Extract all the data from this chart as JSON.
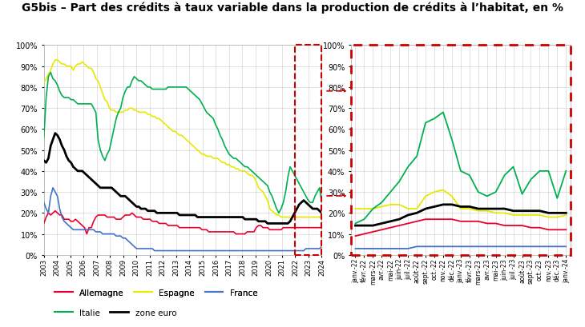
{
  "title": "G5bis – Part des crédits à taux variable dans la production de crédits à l’habitat, en %",
  "title_fontsize": 10,
  "colors": {
    "Allemagne": "#e8002a",
    "Espagne": "#e8e800",
    "France": "#4472c4",
    "Italie": "#00b050",
    "zone euro": "#000000"
  },
  "left_xlabels": [
    "2003",
    "2004",
    "2005",
    "2006",
    "2007",
    "2008",
    "2009",
    "2010",
    "2011",
    "2012",
    "2013",
    "2014",
    "2015",
    "2016",
    "2017",
    "2018",
    "2019",
    "2020",
    "2021",
    "2022",
    "2023",
    "2024"
  ],
  "right_xlabels": [
    "janv.-22",
    "févr.-22",
    "mars-22",
    "avr.-22",
    "mai-22",
    "juin-22",
    "juil.-22",
    "août-22",
    "sept.-22",
    "oct.-22",
    "nov.-22",
    "déc.-22",
    "janv.-23",
    "févr.-23",
    "mars-23",
    "avr.-23",
    "mai-23",
    "juin-23",
    "juil.-23",
    "août-23",
    "sept.-23",
    "oct.-23",
    "nov.-23",
    "déc.-23",
    "janv.-24"
  ],
  "left_data": {
    "Allemagne": [
      15,
      18,
      20,
      19,
      20,
      21,
      20,
      19,
      19,
      17,
      17,
      17,
      16,
      16,
      17,
      16,
      15,
      14,
      13,
      10,
      13,
      13,
      16,
      18,
      19,
      19,
      19,
      19,
      18,
      18,
      18,
      18,
      17,
      17,
      17,
      18,
      19,
      19,
      19,
      20,
      19,
      18,
      18,
      18,
      17,
      17,
      17,
      17,
      16,
      16,
      16,
      15,
      15,
      15,
      15,
      14,
      14,
      14,
      14,
      14,
      13,
      13,
      13,
      13,
      13,
      13,
      13,
      13,
      13,
      13,
      12,
      12,
      12,
      11,
      11,
      11,
      11,
      11,
      11,
      11,
      11,
      11,
      11,
      11,
      11,
      10,
      10,
      10,
      10,
      10,
      11,
      11,
      11,
      11,
      13,
      14,
      14,
      13,
      13,
      13,
      12,
      12,
      12,
      12,
      12,
      12,
      13,
      13,
      13,
      13,
      13,
      13,
      13,
      13,
      13,
      13,
      13,
      13,
      13,
      13,
      13,
      13,
      13,
      13
    ],
    "Espagne": [
      82,
      84,
      86,
      88,
      91,
      93,
      93,
      92,
      91,
      91,
      90,
      90,
      90,
      88,
      90,
      91,
      91,
      92,
      91,
      90,
      89,
      89,
      87,
      84,
      83,
      80,
      77,
      74,
      73,
      70,
      69,
      69,
      68,
      68,
      68,
      68,
      69,
      69,
      70,
      70,
      69,
      69,
      68,
      68,
      68,
      68,
      67,
      67,
      66,
      66,
      65,
      65,
      64,
      63,
      62,
      61,
      60,
      59,
      59,
      58,
      57,
      57,
      56,
      55,
      54,
      53,
      52,
      51,
      50,
      49,
      48,
      48,
      47,
      47,
      47,
      46,
      46,
      46,
      45,
      44,
      44,
      43,
      43,
      42,
      42,
      41,
      41,
      40,
      40,
      40,
      39,
      38,
      38,
      37,
      35,
      32,
      31,
      30,
      28,
      26,
      22,
      21,
      20,
      19,
      19,
      18,
      18,
      18,
      18,
      18,
      18,
      18,
      18,
      18,
      18,
      18,
      18,
      18,
      18,
      18,
      18,
      18,
      18,
      18
    ],
    "France": [
      25,
      22,
      20,
      28,
      32,
      30,
      28,
      22,
      18,
      16,
      15,
      14,
      13,
      12,
      12,
      12,
      12,
      12,
      12,
      12,
      12,
      12,
      12,
      11,
      11,
      11,
      10,
      10,
      10,
      10,
      10,
      10,
      9,
      9,
      9,
      8,
      8,
      7,
      6,
      5,
      4,
      3,
      3,
      3,
      3,
      3,
      3,
      3,
      3,
      2,
      2,
      2,
      2,
      2,
      2,
      2,
      2,
      2,
      2,
      2,
      2,
      2,
      2,
      2,
      2,
      2,
      2,
      2,
      2,
      2,
      2,
      2,
      2,
      2,
      2,
      2,
      2,
      2,
      2,
      2,
      2,
      2,
      2,
      2,
      2,
      2,
      2,
      2,
      2,
      2,
      2,
      2,
      2,
      2,
      2,
      2,
      2,
      2,
      2,
      2,
      2,
      2,
      2,
      2,
      2,
      2,
      2,
      2,
      2,
      2,
      2,
      2,
      2,
      2,
      2,
      2,
      3,
      3,
      3,
      3,
      3,
      3,
      3,
      4
    ],
    "Italie": [
      56,
      75,
      85,
      87,
      84,
      83,
      81,
      78,
      76,
      75,
      75,
      75,
      74,
      74,
      73,
      72,
      72,
      72,
      72,
      72,
      72,
      72,
      70,
      68,
      55,
      50,
      47,
      45,
      48,
      50,
      55,
      60,
      65,
      68,
      70,
      75,
      78,
      80,
      80,
      83,
      85,
      84,
      83,
      83,
      82,
      81,
      80,
      80,
      79,
      79,
      79,
      79,
      79,
      79,
      79,
      80,
      80,
      80,
      80,
      80,
      80,
      80,
      80,
      80,
      79,
      78,
      77,
      76,
      75,
      74,
      72,
      70,
      68,
      67,
      66,
      65,
      62,
      60,
      57,
      55,
      52,
      50,
      48,
      47,
      46,
      46,
      45,
      44,
      43,
      42,
      42,
      41,
      40,
      39,
      38,
      37,
      36,
      35,
      34,
      33,
      30,
      28,
      25,
      22,
      20,
      22,
      25,
      30,
      37,
      42,
      40,
      38,
      36,
      34,
      32,
      30,
      28,
      26,
      25,
      25,
      28,
      30,
      32,
      25
    ],
    "zone euro": [
      45,
      44,
      46,
      52,
      55,
      58,
      57,
      55,
      52,
      50,
      47,
      45,
      44,
      42,
      41,
      40,
      40,
      40,
      39,
      38,
      37,
      36,
      35,
      34,
      33,
      32,
      32,
      32,
      32,
      32,
      32,
      31,
      30,
      29,
      28,
      28,
      28,
      27,
      26,
      25,
      24,
      23,
      23,
      22,
      22,
      22,
      21,
      21,
      21,
      21,
      20,
      20,
      20,
      20,
      20,
      20,
      20,
      20,
      20,
      20,
      19,
      19,
      19,
      19,
      19,
      19,
      19,
      19,
      18,
      18,
      18,
      18,
      18,
      18,
      18,
      18,
      18,
      18,
      18,
      18,
      18,
      18,
      18,
      18,
      18,
      18,
      18,
      18,
      18,
      17,
      17,
      17,
      17,
      17,
      17,
      16,
      16,
      16,
      16,
      15,
      15,
      15,
      15,
      15,
      15,
      15,
      15,
      15,
      15,
      16,
      18,
      20,
      22,
      24,
      25,
      26,
      25,
      24,
      23,
      22,
      22,
      22,
      21,
      20
    ]
  },
  "right_data": {
    "Allemagne": [
      9,
      10,
      11,
      12,
      13,
      14,
      15,
      16,
      17,
      17,
      17,
      17,
      16,
      16,
      16,
      15,
      15,
      14,
      14,
      14,
      13,
      13,
      12,
      12,
      12
    ],
    "Espagne": [
      22,
      22,
      22,
      23,
      24,
      24,
      22,
      22,
      28,
      30,
      31,
      28,
      22,
      22,
      21,
      21,
      20,
      20,
      19,
      19,
      19,
      19,
      18,
      18,
      19
    ],
    "France": [
      3,
      3,
      3,
      3,
      3,
      3,
      3,
      4,
      4,
      4,
      4,
      4,
      4,
      4,
      4,
      4,
      4,
      4,
      4,
      4,
      4,
      4,
      4,
      4,
      4
    ],
    "Italie": [
      15,
      17,
      22,
      25,
      30,
      35,
      42,
      47,
      63,
      65,
      68,
      55,
      40,
      38,
      30,
      28,
      30,
      38,
      42,
      29,
      36,
      40,
      40,
      27,
      40
    ],
    "zone euro": [
      14,
      14,
      14,
      15,
      16,
      17,
      19,
      20,
      22,
      23,
      24,
      24,
      23,
      23,
      22,
      22,
      22,
      22,
      21,
      21,
      21,
      21,
      20,
      20,
      20
    ]
  },
  "left_ylim": [
    0,
    100
  ],
  "right_ylim": [
    0,
    100
  ],
  "yticks": [
    0,
    10,
    20,
    30,
    40,
    50,
    60,
    70,
    80,
    90,
    100
  ],
  "background_color": "#ffffff",
  "dashed_box_color": "#cc0000",
  "grid_color": "#cccccc"
}
